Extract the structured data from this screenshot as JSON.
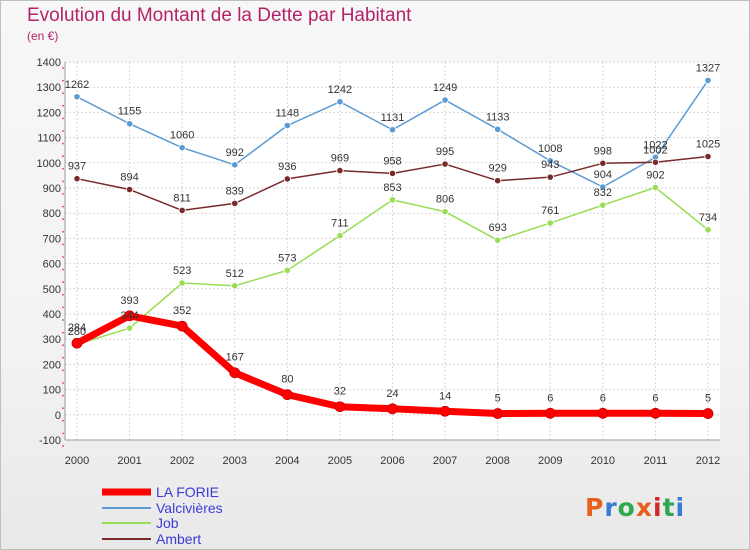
{
  "title": "Evolution du Montant de la Dette par Habitant",
  "subtitle": "(en €)",
  "logo": {
    "text": "Proxiti",
    "colors": [
      "#e8601c",
      "#3a7bd5",
      "#2fa84f",
      "#e8601c",
      "#d62728",
      "#2fa84f",
      "#3a7bd5"
    ]
  },
  "chart_data": {
    "type": "line",
    "title": "Evolution du Montant de la Dette par Habitant",
    "subtitle": "(en €)",
    "x": [
      "2000",
      "2001",
      "2002",
      "2003",
      "2004",
      "2005",
      "2006",
      "2007",
      "2008",
      "2009",
      "2010",
      "2011",
      "2012"
    ],
    "ylim": [
      -100,
      1400
    ],
    "yticks": [
      -100,
      0,
      100,
      200,
      300,
      400,
      500,
      600,
      700,
      800,
      900,
      1000,
      1100,
      1200,
      1300,
      1400
    ],
    "grid": true,
    "legend_position": "bottom-left",
    "series": [
      {
        "name": "LA FORIE",
        "color": "#ff0000",
        "width": 7,
        "values": [
          284,
          393,
          352,
          167,
          80,
          32,
          24,
          14,
          5,
          6,
          6,
          6,
          5
        ]
      },
      {
        "name": "Valcivières",
        "color": "#5b9bd5",
        "width": 1.5,
        "values": [
          1262,
          1155,
          1060,
          992,
          1148,
          1242,
          1131,
          1249,
          1133,
          1008,
          904,
          1022,
          1327
        ]
      },
      {
        "name": "Job",
        "color": "#99dd55",
        "width": 1.5,
        "values": [
          280,
          344,
          523,
          512,
          573,
          711,
          853,
          806,
          693,
          761,
          832,
          902,
          734
        ]
      },
      {
        "name": "Ambert",
        "color": "#7a2a2a",
        "width": 1.5,
        "values": [
          937,
          894,
          811,
          839,
          936,
          969,
          958,
          995,
          929,
          943,
          998,
          1002,
          1025
        ]
      }
    ]
  }
}
